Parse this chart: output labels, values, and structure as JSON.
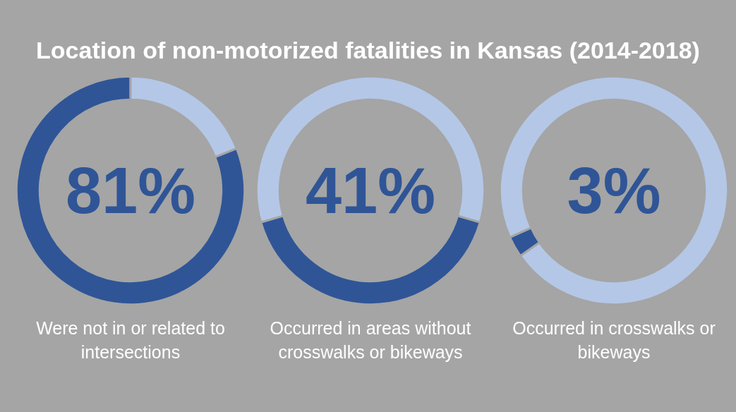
{
  "chart_data": [
    {
      "type": "donut",
      "title": "Location of non-motorized fatalities in Kansas (2014-2018)",
      "categories": [
        null,
        null
      ],
      "values": [
        81,
        19
      ],
      "colors": [
        "#2f5597",
        "#b4c7e7"
      ],
      "value_labels": [
        "81%",
        null
      ],
      "annotations": [
        "Were not in or related to intersections"
      ]
    },
    {
      "type": "donut",
      "categories": [
        null,
        null
      ],
      "values": [
        41,
        59
      ],
      "colors": [
        "#2f5597",
        "#b4c7e7"
      ],
      "value_labels": [
        "41%",
        null
      ],
      "annotations": [
        "Occurred in areas without crosswalks or bikeways"
      ]
    },
    {
      "type": "donut",
      "categories": [
        null,
        null
      ],
      "values": [
        3,
        97
      ],
      "colors": [
        "#2f5597",
        "#b4c7e7"
      ],
      "value_labels": [
        "3%",
        null
      ],
      "annotations": [
        "Occurred in crosswalks or bikeways"
      ]
    }
  ]
}
